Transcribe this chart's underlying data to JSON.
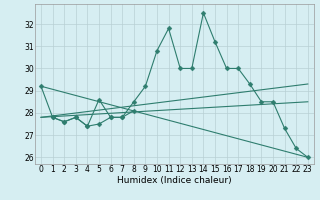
{
  "xlabel": "Humidex (Indice chaleur)",
  "background_color": "#d6eef2",
  "line_color": "#2e7d6e",
  "grid_color": "#b8d0d4",
  "x": [
    0,
    1,
    2,
    3,
    4,
    5,
    6,
    7,
    8,
    9,
    10,
    11,
    12,
    13,
    14,
    15,
    16,
    17,
    18,
    19,
    20,
    21,
    22,
    23
  ],
  "series1": [
    29.2,
    27.8,
    27.6,
    27.8,
    27.4,
    28.6,
    27.8,
    27.8,
    28.5,
    29.2,
    30.8,
    31.8,
    30.0,
    30.0,
    32.5,
    31.2,
    30.0,
    30.0,
    29.3,
    28.5,
    28.5,
    27.3,
    26.4,
    26.0
  ],
  "series2_x": [
    1,
    2,
    3,
    4,
    5,
    6,
    7,
    8
  ],
  "series2_y": [
    27.8,
    27.6,
    27.8,
    27.4,
    27.5,
    27.8,
    27.8,
    28.1
  ],
  "trend1_x": [
    0,
    23
  ],
  "trend1_y": [
    27.8,
    29.3
  ],
  "trend2_x": [
    0,
    23
  ],
  "trend2_y": [
    27.8,
    28.5
  ],
  "trend3_x": [
    0,
    23
  ],
  "trend3_y": [
    29.2,
    26.0
  ],
  "ylim": [
    25.7,
    32.9
  ],
  "xlim": [
    -0.5,
    23.5
  ],
  "yticks": [
    26,
    27,
    28,
    29,
    30,
    31,
    32
  ],
  "xticks": [
    0,
    1,
    2,
    3,
    4,
    5,
    6,
    7,
    8,
    9,
    10,
    11,
    12,
    13,
    14,
    15,
    16,
    17,
    18,
    19,
    20,
    21,
    22,
    23
  ],
  "tick_fontsize": 5.5,
  "xlabel_fontsize": 6.5,
  "marker": "D",
  "markersize": 2.5,
  "linewidth": 0.8
}
